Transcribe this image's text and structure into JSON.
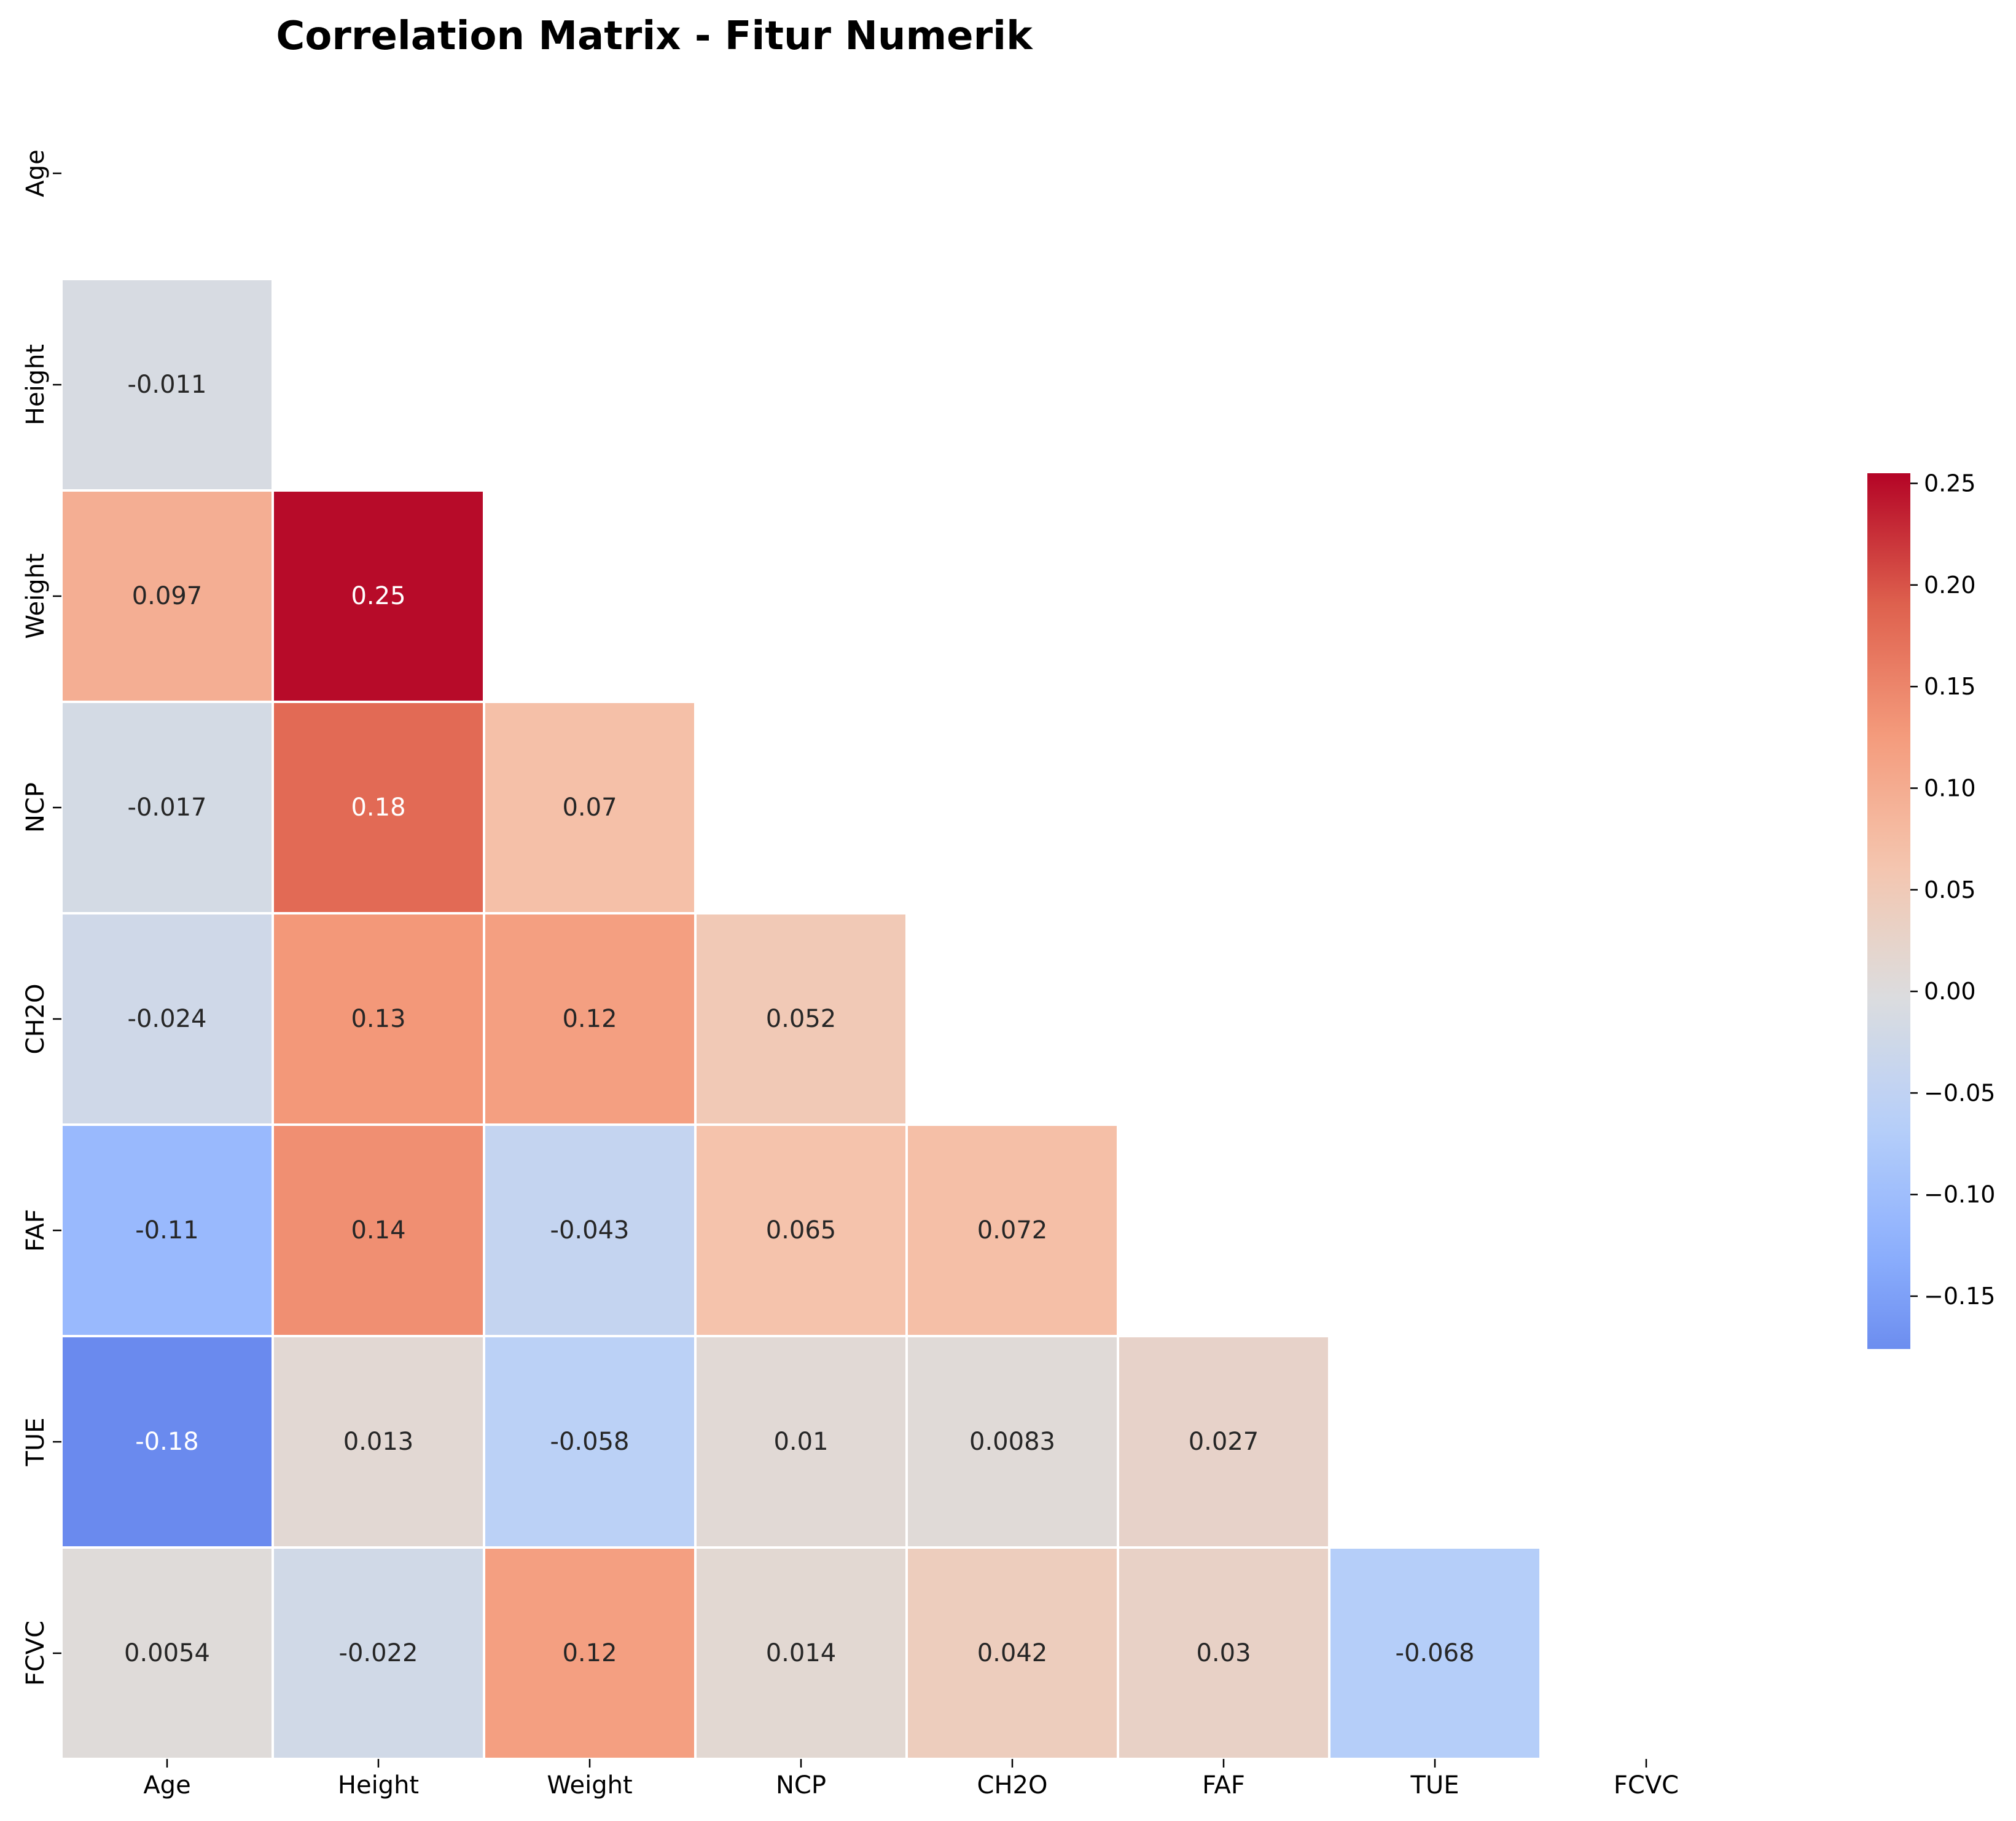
{
  "chart_data": {
    "type": "heatmap",
    "title": "Correlation Matrix - Fitur Numerik",
    "xlabel": "",
    "ylabel": "",
    "labels": [
      "Age",
      "Height",
      "Weight",
      "NCP",
      "CH2O",
      "FAF",
      "TUE",
      "FCVC"
    ],
    "mask": "upper triangle including diagonal",
    "colormap": "coolwarm",
    "center": 0,
    "color_range": [
      -0.176,
      0.255
    ],
    "cells": [
      {
        "row": "Height",
        "col": "Age",
        "value": -0.011,
        "label": "-0.011"
      },
      {
        "row": "Weight",
        "col": "Age",
        "value": 0.097,
        "label": "0.097"
      },
      {
        "row": "Weight",
        "col": "Height",
        "value": 0.25,
        "label": "0.25"
      },
      {
        "row": "NCP",
        "col": "Age",
        "value": -0.017,
        "label": "-0.017"
      },
      {
        "row": "NCP",
        "col": "Height",
        "value": 0.18,
        "label": "0.18"
      },
      {
        "row": "NCP",
        "col": "Weight",
        "value": 0.07,
        "label": "0.07"
      },
      {
        "row": "CH2O",
        "col": "Age",
        "value": -0.024,
        "label": "-0.024"
      },
      {
        "row": "CH2O",
        "col": "Height",
        "value": 0.13,
        "label": "0.13"
      },
      {
        "row": "CH2O",
        "col": "Weight",
        "value": 0.12,
        "label": "0.12"
      },
      {
        "row": "CH2O",
        "col": "NCP",
        "value": 0.052,
        "label": "0.052"
      },
      {
        "row": "FAF",
        "col": "Age",
        "value": -0.11,
        "label": "-0.11"
      },
      {
        "row": "FAF",
        "col": "Height",
        "value": 0.14,
        "label": "0.14"
      },
      {
        "row": "FAF",
        "col": "Weight",
        "value": -0.043,
        "label": "-0.043"
      },
      {
        "row": "FAF",
        "col": "NCP",
        "value": 0.065,
        "label": "0.065"
      },
      {
        "row": "FAF",
        "col": "CH2O",
        "value": 0.072,
        "label": "0.072"
      },
      {
        "row": "TUE",
        "col": "Age",
        "value": -0.18,
        "label": "-0.18"
      },
      {
        "row": "TUE",
        "col": "Height",
        "value": 0.013,
        "label": "0.013"
      },
      {
        "row": "TUE",
        "col": "Weight",
        "value": -0.058,
        "label": "-0.058"
      },
      {
        "row": "TUE",
        "col": "NCP",
        "value": 0.01,
        "label": "0.01"
      },
      {
        "row": "TUE",
        "col": "CH2O",
        "value": 0.0083,
        "label": "0.0083"
      },
      {
        "row": "TUE",
        "col": "FAF",
        "value": 0.027,
        "label": "0.027"
      },
      {
        "row": "FCVC",
        "col": "Age",
        "value": 0.0054,
        "label": "0.0054"
      },
      {
        "row": "FCVC",
        "col": "Height",
        "value": -0.022,
        "label": "-0.022"
      },
      {
        "row": "FCVC",
        "col": "Weight",
        "value": 0.12,
        "label": "0.12"
      },
      {
        "row": "FCVC",
        "col": "NCP",
        "value": 0.014,
        "label": "0.014"
      },
      {
        "row": "FCVC",
        "col": "CH2O",
        "value": 0.042,
        "label": "0.042"
      },
      {
        "row": "FCVC",
        "col": "FAF",
        "value": 0.03,
        "label": "0.03"
      },
      {
        "row": "FCVC",
        "col": "TUE",
        "value": -0.068,
        "label": "-0.068"
      }
    ],
    "colorbar": {
      "ticks": [
        -0.15,
        -0.1,
        -0.05,
        0.0,
        0.05,
        0.1,
        0.15,
        0.2,
        0.25
      ],
      "tick_labels": [
        "−0.15",
        "−0.10",
        "−0.05",
        "0.00",
        "0.05",
        "0.10",
        "0.15",
        "0.20",
        "0.25"
      ]
    }
  }
}
